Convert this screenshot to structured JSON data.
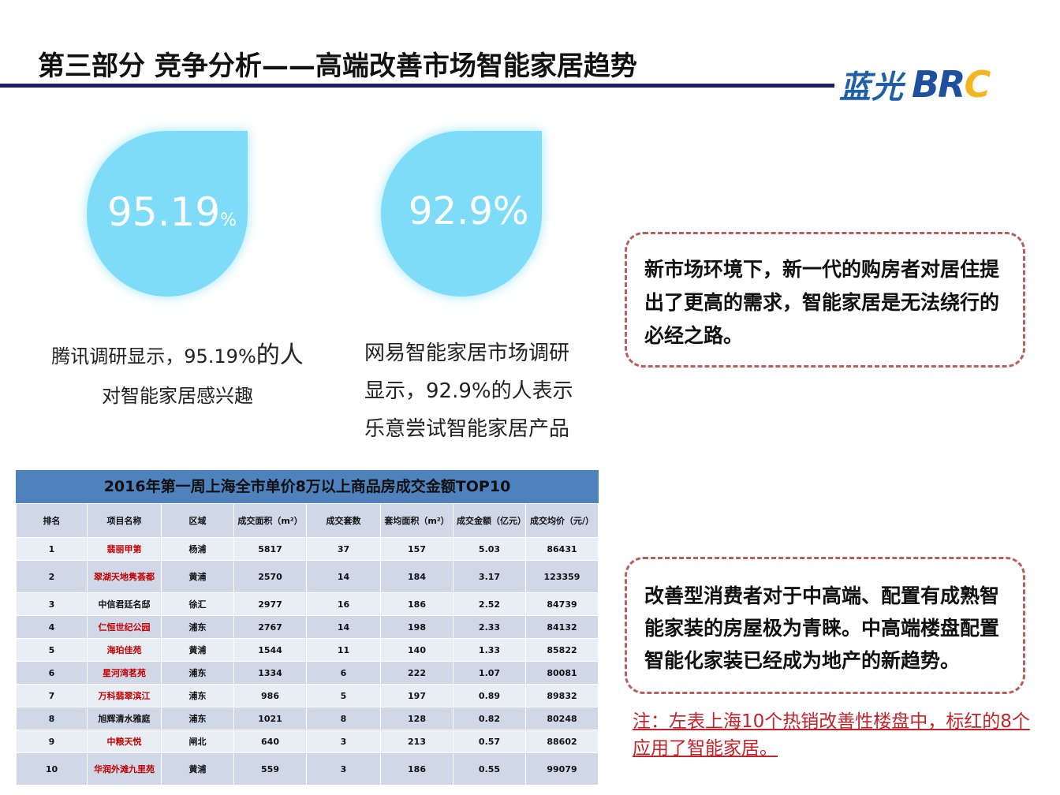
{
  "header": {
    "title": "第三部分 竞争分析——高端改善市场智能家居趋势",
    "logo_cn": "蓝光",
    "logo_en": "BR",
    "logo_en_c": "C"
  },
  "stats": [
    {
      "value": "95.19",
      "unit": "%",
      "caption_line1": "腾讯调研显示，95.19%",
      "caption_emph": "的人",
      "caption_line2": "对智能家居感兴趣"
    },
    {
      "value": "92.9%",
      "caption_line1": "网易智能家居市场调研",
      "caption_line2": "显示，92.9%的人表示",
      "caption_line3": "乐意尝试智能家居产品"
    }
  ],
  "callouts": {
    "top": "新市场环境下，新一代的购房者对居住提出了更高的需求，智能家居是无法绕行的必经之路。",
    "bottom": "改善型消费者对于中高端、配置有成熟智能家装的房屋极为青睐。中高端楼盘配置智能化家装已经成为地产的新趋势。",
    "note": "注：左表上海10个热销改善性楼盘中，标红的8个应用了智能家居。"
  },
  "table": {
    "title": "2016年第一周上海全市单价8万以上商品房成交金额TOP10",
    "headers": [
      "排名",
      "项目名称",
      "区域",
      "成交面积（m²）",
      "成交套数",
      "套均面积（m²）",
      "成交金额（亿元）",
      "成交均价（元/）"
    ],
    "rows": [
      {
        "rank": "1",
        "name": "翡丽甲第",
        "area": "杨浦",
        "sqm": "5817",
        "units": "37",
        "avg": "157",
        "amount": "5.03",
        "price": "86431",
        "red": true
      },
      {
        "rank": "2",
        "name": "翠湖天地隽荟都",
        "area": "黄浦",
        "sqm": "2570",
        "units": "14",
        "avg": "184",
        "amount": "3.17",
        "price": "123359",
        "red": true
      },
      {
        "rank": "3",
        "name": "中信君廷名邸",
        "area": "徐汇",
        "sqm": "2977",
        "units": "16",
        "avg": "186",
        "amount": "2.52",
        "price": "84739",
        "red": false
      },
      {
        "rank": "4",
        "name": "仁恒世纪公园",
        "area": "浦东",
        "sqm": "2767",
        "units": "14",
        "avg": "198",
        "amount": "2.33",
        "price": "84132",
        "red": true
      },
      {
        "rank": "5",
        "name": "海珀佳苑",
        "area": "黄浦",
        "sqm": "1544",
        "units": "11",
        "avg": "140",
        "amount": "1.33",
        "price": "85822",
        "red": true
      },
      {
        "rank": "6",
        "name": "星河湾茗苑",
        "area": "浦东",
        "sqm": "1334",
        "units": "6",
        "avg": "222",
        "amount": "1.07",
        "price": "80081",
        "red": true
      },
      {
        "rank": "7",
        "name": "万科翡翠滨江",
        "area": "浦东",
        "sqm": "986",
        "units": "5",
        "avg": "197",
        "amount": "0.89",
        "price": "89832",
        "red": true
      },
      {
        "rank": "8",
        "name": "旭辉清水雅庭",
        "area": "浦东",
        "sqm": "1021",
        "units": "8",
        "avg": "128",
        "amount": "0.82",
        "price": "80248",
        "red": false
      },
      {
        "rank": "9",
        "name": "中粮天悦",
        "area": "闸北",
        "sqm": "640",
        "units": "3",
        "avg": "213",
        "amount": "0.57",
        "price": "88602",
        "red": true
      },
      {
        "rank": "10",
        "name": "华润外滩九里苑",
        "area": "黄浦",
        "sqm": "559",
        "units": "3",
        "avg": "186",
        "amount": "0.55",
        "price": "99079",
        "red": true
      }
    ]
  }
}
